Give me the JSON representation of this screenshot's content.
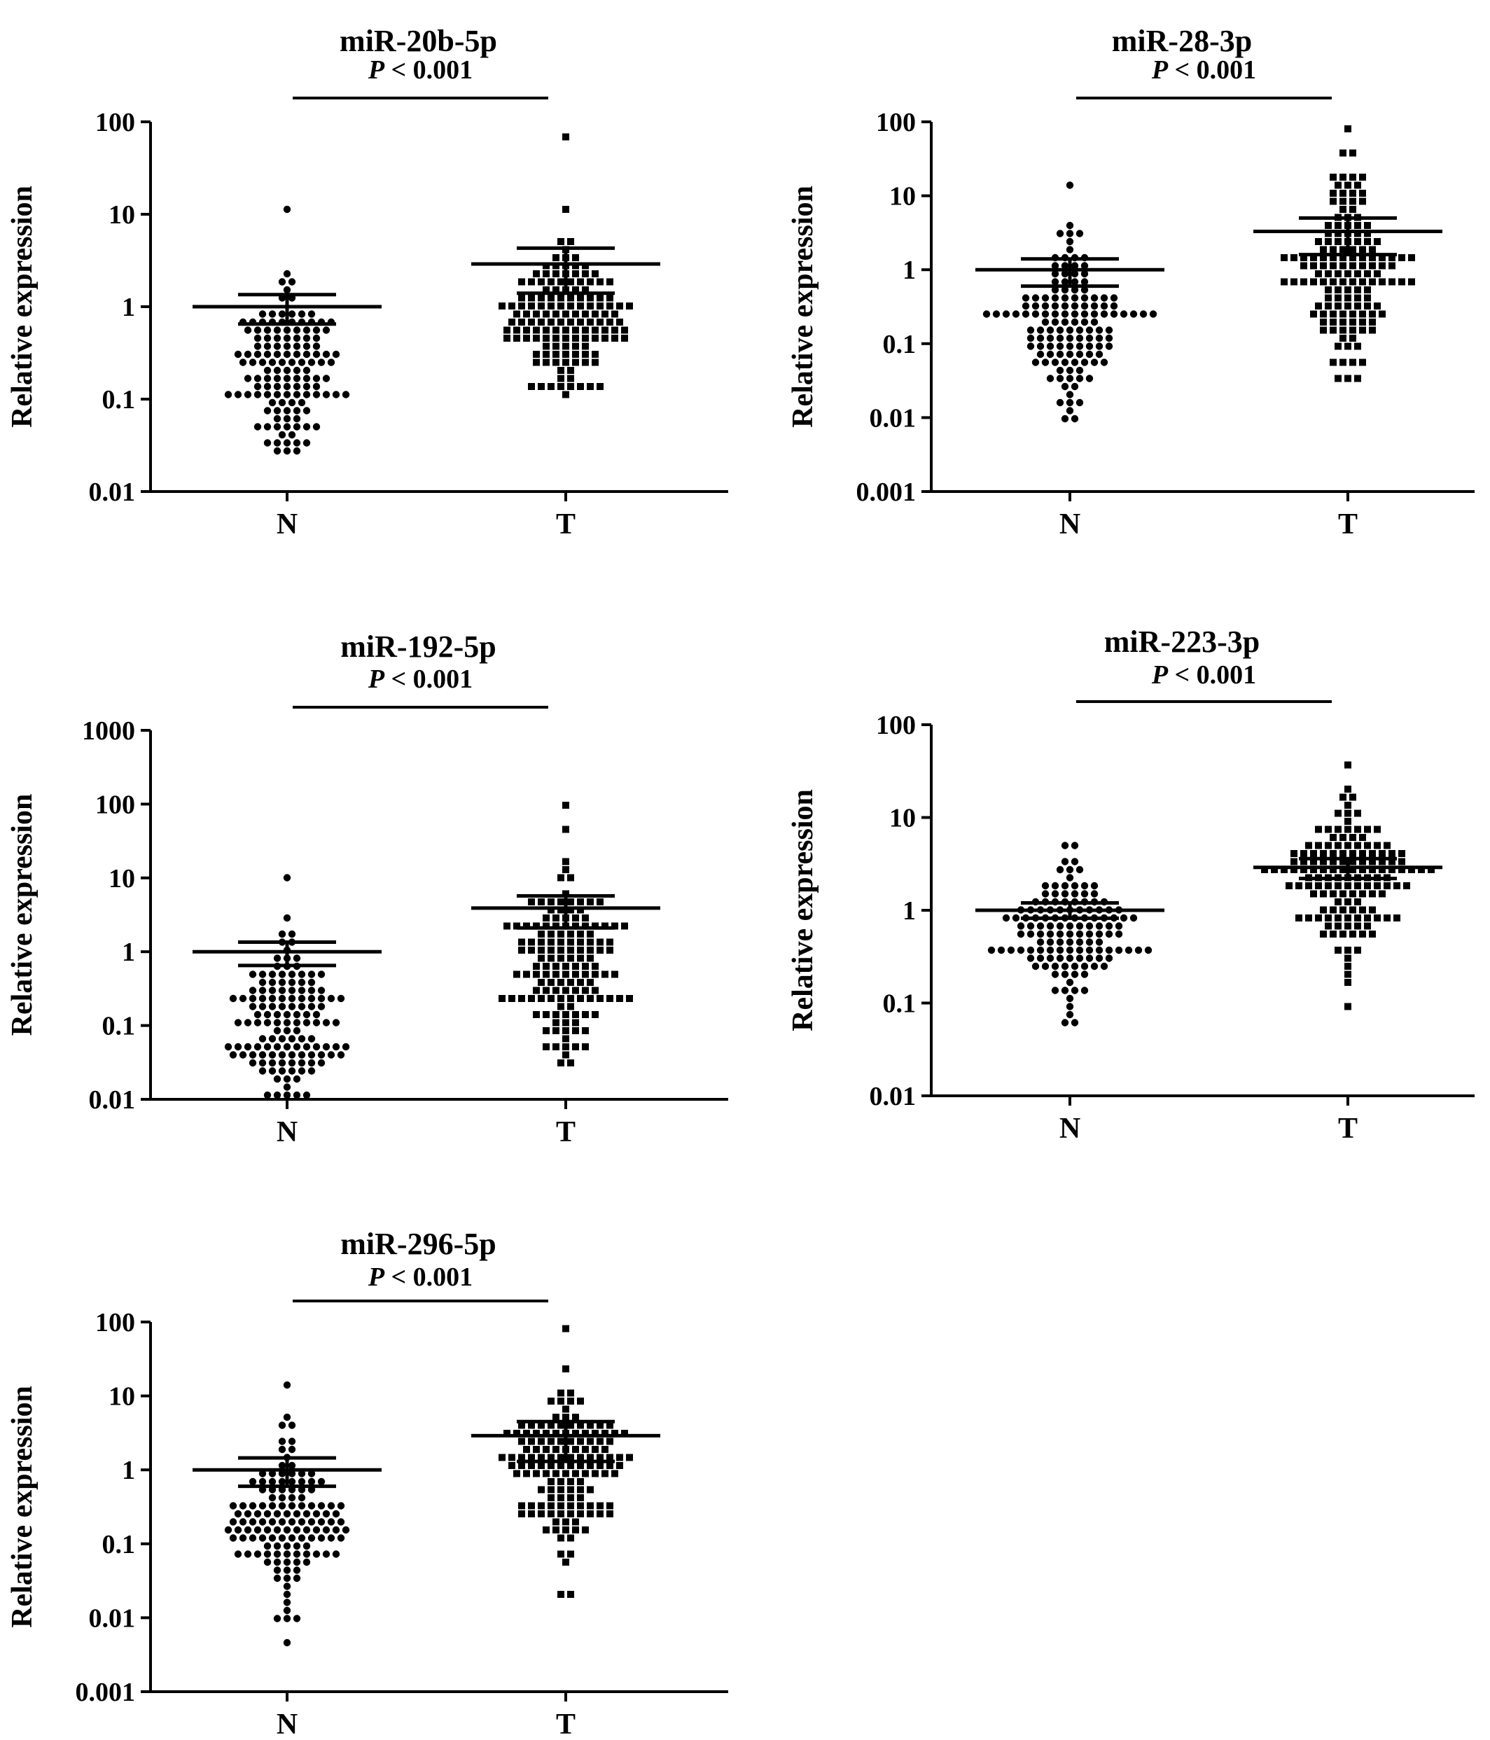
{
  "chart_data": [
    {
      "type": "scatter",
      "title": "miR-20b-5p",
      "significance": {
        "prefix": "P",
        "text": " < 0.001"
      },
      "ylabel": "Relative expression",
      "yscale": "log",
      "ylim": [
        0.01,
        100
      ],
      "yticks": [
        "0.01",
        "0.1",
        "1",
        "10",
        "100"
      ],
      "categories": [
        "N",
        "T"
      ],
      "series": [
        {
          "category": "N",
          "marker": "circle",
          "n": 130,
          "median_log10": -0.65,
          "spread": 0.45,
          "min": 0.025,
          "max": 11,
          "mean": 1.0,
          "error": [
            0.65,
            1.35
          ]
        },
        {
          "category": "T",
          "marker": "square",
          "n": 140,
          "median_log10": -0.15,
          "spread": 0.38,
          "min": 0.12,
          "max": 75,
          "mean": 2.9,
          "error": [
            1.4,
            4.3
          ]
        }
      ]
    },
    {
      "type": "scatter",
      "title": "miR-28-3p",
      "significance": {
        "prefix": "P",
        "text": " < 0.001"
      },
      "ylabel": "Relative expression",
      "yscale": "log",
      "ylim": [
        0.001,
        100
      ],
      "yticks": [
        "0.001",
        "0.01",
        "0.1",
        "1",
        "10",
        "100"
      ],
      "categories": [
        "N",
        "T"
      ],
      "series": [
        {
          "category": "N",
          "marker": "circle",
          "n": 130,
          "median_log10": -0.8,
          "spread": 0.55,
          "min": 0.009,
          "max": 14,
          "mean": 1.0,
          "error": [
            0.6,
            1.4
          ]
        },
        {
          "category": "T",
          "marker": "square",
          "n": 140,
          "median_log10": -0.05,
          "spread": 0.6,
          "min": 0.03,
          "max": 85,
          "mean": 3.3,
          "error": [
            1.6,
            5.0
          ]
        }
      ]
    },
    {
      "type": "scatter",
      "title": "miR-192-5p",
      "significance": {
        "prefix": "P",
        "text": " < 0.001"
      },
      "ylabel": "Relative expression",
      "yscale": "log",
      "ylim": [
        0.01,
        1000
      ],
      "yticks": [
        "0.01",
        "0.1",
        "1",
        "10",
        "100",
        "1000"
      ],
      "categories": [
        "N",
        "T"
      ],
      "series": [
        {
          "category": "N",
          "marker": "circle",
          "n": 130,
          "median_log10": -0.85,
          "spread": 0.6,
          "min": 0.012,
          "max": 10,
          "mean": 1.0,
          "error": [
            0.65,
            1.35
          ]
        },
        {
          "category": "T",
          "marker": "square",
          "n": 140,
          "median_log10": -0.2,
          "spread": 0.65,
          "min": 0.03,
          "max": 95,
          "mean": 3.9,
          "error": [
            2.1,
            5.7
          ]
        }
      ]
    },
    {
      "type": "scatter",
      "title": "miR-223-3p",
      "significance": {
        "prefix": "P",
        "text": " < 0.001"
      },
      "ylabel": "Relative expression",
      "yscale": "log",
      "ylim": [
        0.01,
        100
      ],
      "yticks": [
        "0.01",
        "0.1",
        "1",
        "10",
        "100"
      ],
      "categories": [
        "N",
        "T"
      ],
      "series": [
        {
          "category": "N",
          "marker": "circle",
          "n": 130,
          "median_log10": -0.25,
          "spread": 0.38,
          "min": 0.06,
          "max": 5.5,
          "mean": 1.0,
          "error": [
            0.82,
            1.2
          ]
        },
        {
          "category": "T",
          "marker": "square",
          "n": 140,
          "median_log10": 0.3,
          "spread": 0.36,
          "min": 0.1,
          "max": 35,
          "mean": 2.9,
          "error": [
            2.2,
            3.6
          ]
        }
      ]
    },
    {
      "type": "scatter",
      "title": "miR-296-5p",
      "significance": {
        "prefix": "P",
        "text": " < 0.001"
      },
      "ylabel": "Relative expression",
      "yscale": "log",
      "ylim": [
        0.001,
        100
      ],
      "yticks": [
        "0.001",
        "0.01",
        "0.1",
        "1",
        "10",
        "100"
      ],
      "categories": [
        "N",
        "T"
      ],
      "series": [
        {
          "category": "N",
          "marker": "circle",
          "n": 130,
          "median_log10": -0.75,
          "spread": 0.55,
          "min": 0.005,
          "max": 14,
          "mean": 1.0,
          "error": [
            0.6,
            1.45
          ]
        },
        {
          "category": "T",
          "marker": "square",
          "n": 140,
          "median_log10": -0.05,
          "spread": 0.5,
          "min": 0.022,
          "max": 75,
          "mean": 2.9,
          "error": [
            1.3,
            4.5
          ]
        }
      ]
    }
  ]
}
